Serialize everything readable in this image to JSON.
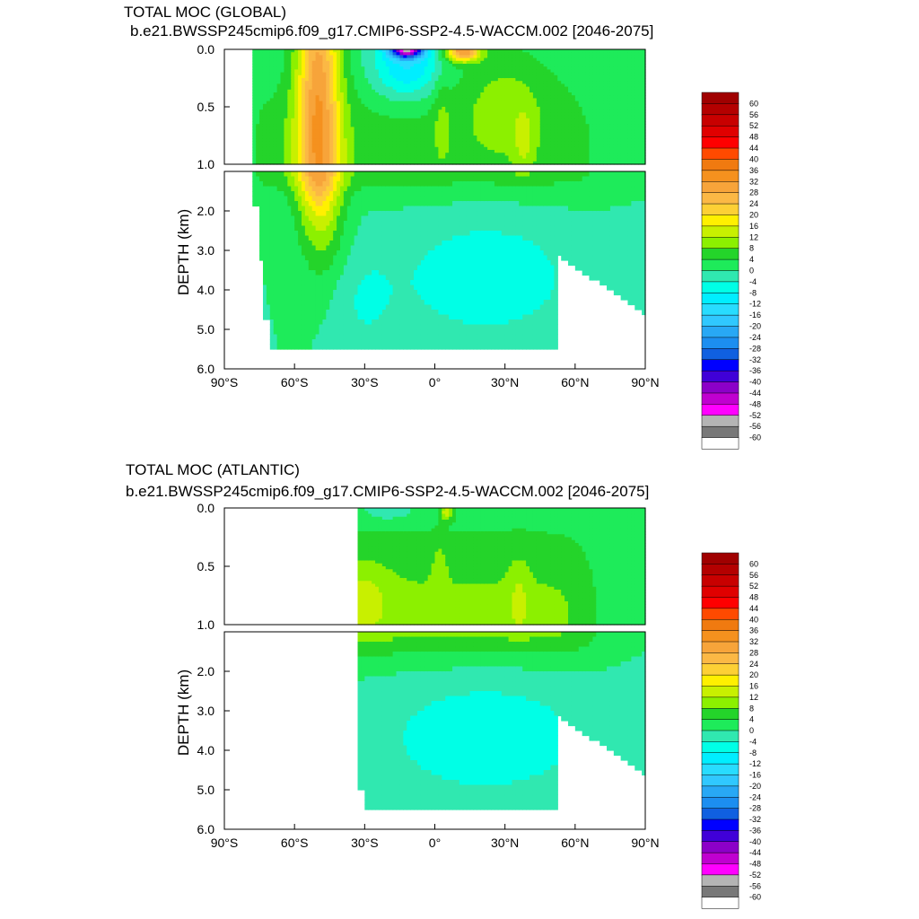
{
  "colors": {
    "levels": [
      60,
      56,
      52,
      48,
      44,
      40,
      36,
      32,
      28,
      24,
      20,
      16,
      12,
      8,
      4,
      0,
      -4,
      -8,
      -12,
      -16,
      -20,
      -24,
      -28,
      -32,
      -36,
      -40,
      -44,
      -48,
      -52,
      -56,
      -60
    ],
    "palette": [
      "#a00000",
      "#b40000",
      "#c80000",
      "#e00000",
      "#ff0000",
      "#ff4a00",
      "#f07a10",
      "#f5911e",
      "#f7a43a",
      "#fbb845",
      "#fdd035",
      "#fff000",
      "#c8f000",
      "#8cf000",
      "#24d42a",
      "#1eeb5a",
      "#30e8b0",
      "#00ffe6",
      "#00eeff",
      "#28dcff",
      "#30c8ff",
      "#28a8f5",
      "#1c8ef0",
      "#1060e0",
      "#0000ff",
      "#4000d8",
      "#8c00c8",
      "#c000d0",
      "#ff00ff",
      "#b4b4b4",
      "#787878",
      "#ffffff"
    ]
  },
  "chart_data": [
    {
      "type": "heatmap",
      "title": "TOTAL MOC (GLOBAL)",
      "subtitle": "b.e21.BWSSP245cmip6.f09_g17.CMIP6-SSP2-4.5-WACCM.002 [2046-2075]",
      "ylabel": "DEPTH (km)",
      "xlabel": "",
      "xlim": [
        -90,
        90
      ],
      "xticks": [
        "90°S",
        "60°S",
        "30°S",
        "0°",
        "30°N",
        "60°N",
        "90°N"
      ],
      "upper_ylim": [
        0.0,
        1.0
      ],
      "upper_yticks": [
        "0.0",
        "0.5",
        "1.0"
      ],
      "lower_ylim": [
        1.0,
        6.0
      ],
      "lower_yticks": [
        "2.0",
        "3.0",
        "4.0",
        "5.0",
        "6.0"
      ],
      "colorbar_labels": [
        "60",
        "56",
        "52",
        "48",
        "44",
        "40",
        "36",
        "32",
        "28",
        "24",
        "20",
        "16",
        "12",
        "8",
        "4",
        "0",
        "-4",
        "-8",
        "-12",
        "-16",
        "-20",
        "-24",
        "-28",
        "-32",
        "-36",
        "-40",
        "-44",
        "-48",
        "-52",
        "-56",
        "-60"
      ],
      "features": [
        {
          "lat": -50,
          "depth": 0.1,
          "value": 28
        },
        {
          "lat": -50,
          "depth": 2.0,
          "value": 22
        },
        {
          "lat": -12,
          "depth": 0.02,
          "value": -44
        },
        {
          "lat": 12,
          "depth": 0.03,
          "value": 28
        },
        {
          "lat": 38,
          "depth": 0.8,
          "value": 14
        },
        {
          "lat": 20,
          "depth": 3.5,
          "value": -2
        }
      ]
    },
    {
      "type": "heatmap",
      "title": "TOTAL MOC (ATLANTIC)",
      "subtitle": "b.e21.BWSSP245cmip6.f09_g17.CMIP6-SSP2-4.5-WACCM.002 [2046-2075]",
      "ylabel": "DEPTH (km)",
      "xlabel": "",
      "xlim": [
        -90,
        90
      ],
      "xticks": [
        "90°S",
        "60°S",
        "30°S",
        "0°",
        "30°N",
        "60°N",
        "90°N"
      ],
      "upper_ylim": [
        0.0,
        1.0
      ],
      "upper_yticks": [
        "0.0",
        "0.5",
        "1.0"
      ],
      "lower_ylim": [
        1.0,
        6.0
      ],
      "lower_yticks": [
        "2.0",
        "3.0",
        "4.0",
        "5.0",
        "6.0"
      ],
      "colorbar_labels": [
        "60",
        "56",
        "52",
        "48",
        "44",
        "40",
        "36",
        "32",
        "28",
        "24",
        "20",
        "16",
        "12",
        "8",
        "4",
        "0",
        "-4",
        "-8",
        "-12",
        "-16",
        "-20",
        "-24",
        "-28",
        "-32",
        "-36",
        "-40",
        "-44",
        "-48",
        "-52",
        "-56",
        "-60"
      ],
      "features": [
        {
          "lat": -28,
          "depth": 0.8,
          "value": 14
        },
        {
          "lat": 35,
          "depth": 0.8,
          "value": 13
        },
        {
          "lat": 2,
          "depth": 0.5,
          "value": 11
        },
        {
          "lat": -20,
          "depth": 0.05,
          "value": -2
        },
        {
          "lat": 20,
          "depth": 3.5,
          "value": -2
        }
      ]
    }
  ]
}
